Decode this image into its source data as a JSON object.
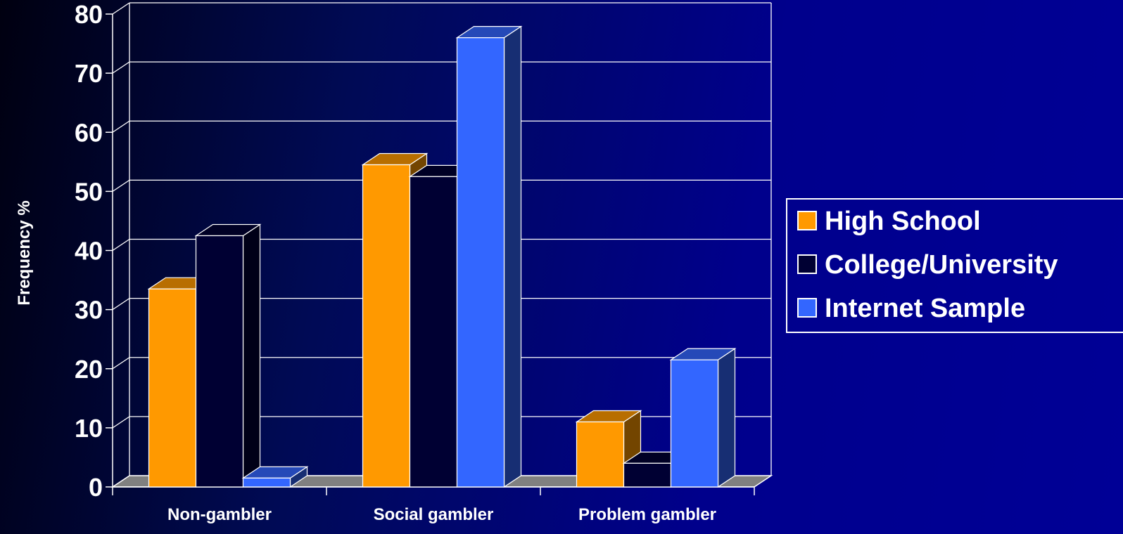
{
  "chart_data": {
    "type": "bar",
    "title": "",
    "xlabel": "",
    "ylabel": "Frequency %",
    "ylim": [
      0,
      80
    ],
    "yticks": [
      0,
      10,
      20,
      30,
      40,
      50,
      60,
      70,
      80
    ],
    "categories": [
      "Non-gambler",
      "Social gambler",
      "Problem gambler"
    ],
    "series": [
      {
        "name": "High School",
        "values": [
          33.5,
          54.5,
          11
        ],
        "color": "#ff9900"
      },
      {
        "name": "College/University",
        "values": [
          42.5,
          52.5,
          4
        ],
        "color": "#000033"
      },
      {
        "name": "Internet Sample",
        "values": [
          1.5,
          76,
          21.5
        ],
        "color": "#3366ff"
      }
    ],
    "grid": true,
    "projection": "3d",
    "legend_position": "right"
  }
}
